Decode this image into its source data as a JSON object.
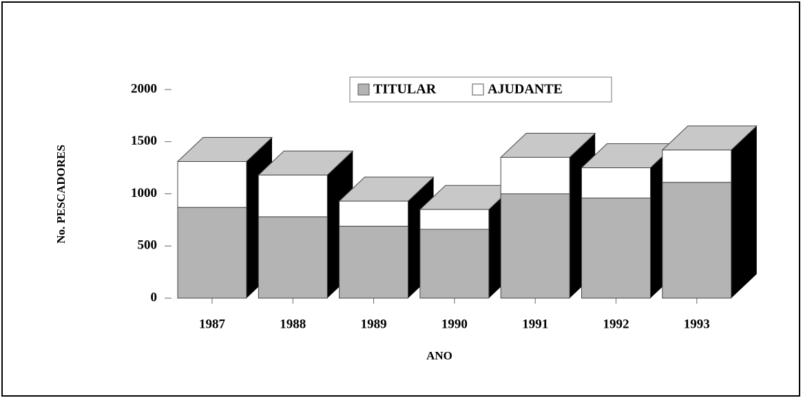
{
  "chart_data": {
    "type": "bar3d_stacked",
    "categories": [
      "1987",
      "1988",
      "1989",
      "1990",
      "1991",
      "1992",
      "1993"
    ],
    "series": [
      {
        "name": "TITULAR",
        "color": "#b4b4b4",
        "values": [
          870,
          780,
          690,
          660,
          1000,
          960,
          1110
        ]
      },
      {
        "name": "AJUDANTE",
        "color": "#ffffff",
        "values": [
          440,
          400,
          240,
          190,
          350,
          290,
          310
        ]
      }
    ],
    "xlabel": "ANO",
    "ylabel": "No. PESCADORES",
    "ylim": [
      0,
      2000
    ],
    "yticks": [
      0,
      500,
      1000,
      1500,
      2000
    ]
  }
}
